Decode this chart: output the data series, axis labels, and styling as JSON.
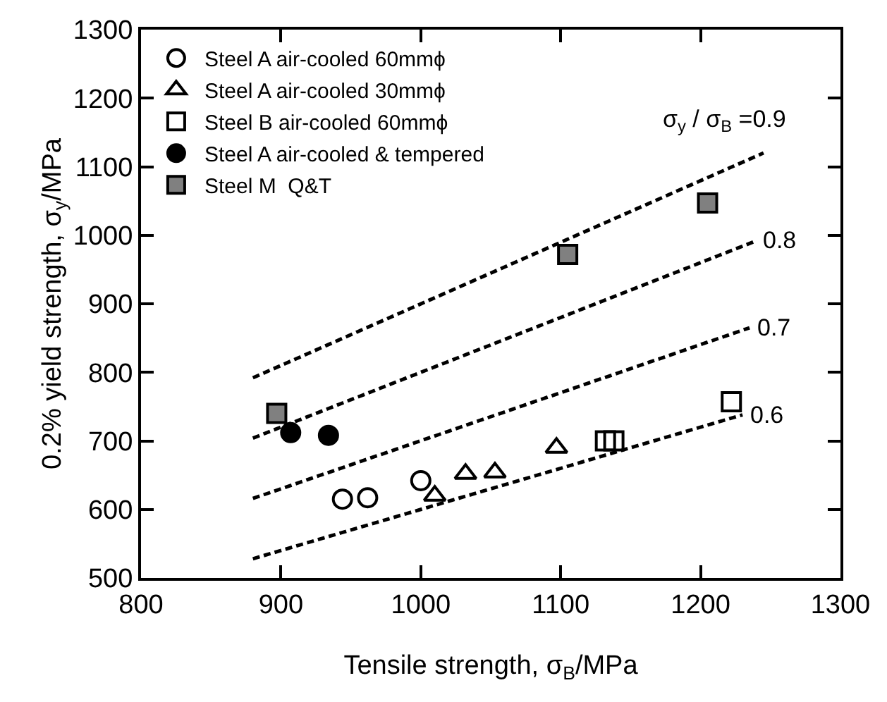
{
  "chart_data": {
    "type": "scatter",
    "xlabel": "Tensile strength, σ$_{B}$/MPa",
    "ylabel": "0.2% yield strength, σ$_{y}$/MPa",
    "xlim": [
      800,
      1300
    ],
    "xticks": [
      800,
      900,
      1000,
      1100,
      1200,
      1300
    ],
    "ylim": [
      500,
      1300
    ],
    "yticks": [
      500,
      600,
      700,
      800,
      900,
      1000,
      1100,
      1200,
      1300
    ],
    "grid": false,
    "legend": "top left",
    "series": [
      {
        "name": "Steel A air-cooled 60mmϕ",
        "marker": "circle-open",
        "color": "#000000",
        "x": [
          944,
          962,
          1000
        ],
        "values": [
          615,
          617,
          642
        ]
      },
      {
        "name": "Steel A air-cooled 30mmϕ",
        "marker": "triangle-open",
        "color": "#000000",
        "x": [
          1010,
          1032,
          1053,
          1097
        ],
        "values": [
          620,
          652,
          654,
          690
        ]
      },
      {
        "name": "Steel B air-cooled 60mmϕ",
        "marker": "square-open",
        "color": "#000000",
        "x": [
          1132,
          1138,
          1222
        ],
        "values": [
          700,
          700,
          757
        ]
      },
      {
        "name": "Steel A air-cooled & tempered",
        "marker": "circle",
        "color": "#000000",
        "x": [
          907,
          934
        ],
        "values": [
          712,
          708
        ]
      },
      {
        "name": "Steel M  Q&T",
        "marker": "square",
        "color": "#808080",
        "x": [
          897,
          1105,
          1205
        ],
        "values": [
          740,
          972,
          1047
        ]
      },
      {
        "name": "σ$_{y}$ / σ$_{B}$ =0.9",
        "type": "line",
        "line_style": "dashed",
        "color": "#000000",
        "x": [
          880,
          1245
        ],
        "values": [
          792,
          1120
        ]
      },
      {
        "name": "0.8",
        "type": "line",
        "line_style": "dashed",
        "color": "#000000",
        "x": [
          880,
          1240
        ],
        "values": [
          704,
          992
        ]
      },
      {
        "name": "0.7",
        "type": "line",
        "line_style": "dashed",
        "color": "#000000",
        "x": [
          880,
          1235
        ],
        "values": [
          616,
          865
        ]
      },
      {
        "name": "0.6",
        "type": "line",
        "line_style": "dashed",
        "color": "#000000",
        "x": [
          880,
          1230
        ],
        "values": [
          528,
          738
        ]
      }
    ]
  }
}
